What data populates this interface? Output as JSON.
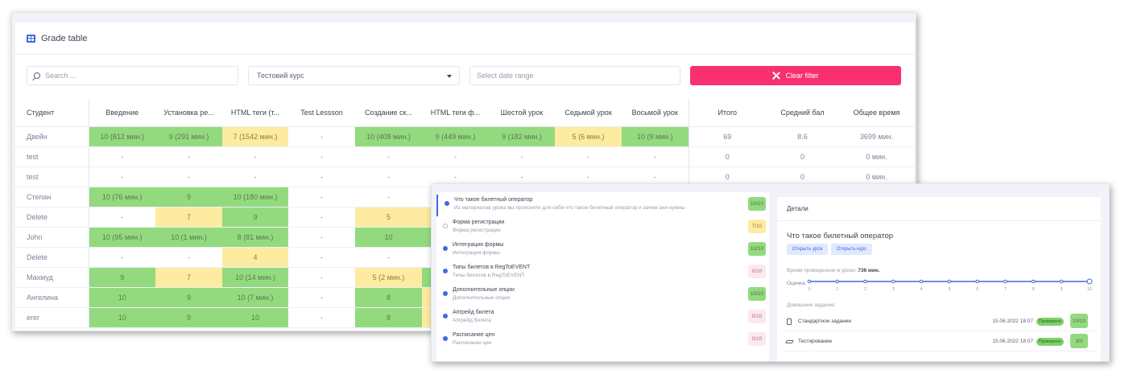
{
  "card": {
    "title": "Grade table"
  },
  "filters": {
    "search_placeholder": "Search ...",
    "course_value": "Тестовий курс",
    "date_placeholder": "Select date range",
    "clear_label": "Clear filter"
  },
  "table": {
    "headers": [
      "Студент",
      "Введение",
      "Установка ре...",
      "HTML теги (т...",
      "Test Lessson",
      "Создание ск...",
      "HTML теги ф...",
      "Шестой урок",
      "Седьмой урок",
      "Восьмой урок",
      "Итого",
      "Средний бал",
      "Общее время"
    ],
    "rows": [
      {
        "cells": [
          "Двейн",
          "10 (812 мин.)",
          "9 (291 мин.)",
          "7 (1542 мин.)",
          "-",
          "10 (408 мин.)",
          "9 (449 мин.)",
          "9 (182 мин.)",
          "5 (6 мин.)",
          "10 (9 мин.)",
          "69",
          "8.6",
          "3699 мин."
        ],
        "colors": [
          "",
          "g",
          "g",
          "y",
          "w",
          "g",
          "g",
          "g",
          "y",
          "g",
          "",
          "",
          ""
        ]
      },
      {
        "cells": [
          "test",
          "-",
          "-",
          "-",
          "-",
          "-",
          "-",
          "-",
          "-",
          "-",
          "0",
          "0",
          "0 мин."
        ],
        "colors": [
          "",
          "w",
          "w",
          "w",
          "w",
          "w",
          "w",
          "w",
          "w",
          "w",
          "",
          "",
          ""
        ]
      },
      {
        "cells": [
          "test",
          "-",
          "-",
          "-",
          "-",
          "-",
          "-",
          "-",
          "-",
          "-",
          "0",
          "0",
          "0 мин."
        ],
        "colors": [
          "",
          "w",
          "w",
          "w",
          "w",
          "w",
          "w",
          "w",
          "w",
          "w",
          "",
          "",
          ""
        ]
      },
      {
        "cells": [
          "Степан",
          "10 (76 мин.)",
          "9",
          "10 (180 мин.)",
          "-",
          "-",
          "",
          "",
          "",
          "",
          "",
          "",
          ""
        ],
        "colors": [
          "",
          "g",
          "g",
          "g",
          "w",
          "w",
          "",
          "",
          "",
          "",
          "",
          "",
          ""
        ]
      },
      {
        "cells": [
          "Delete",
          "-",
          "7",
          "9",
          "-",
          "5",
          "",
          "",
          "",
          "",
          "",
          "",
          ""
        ],
        "colors": [
          "",
          "w",
          "y",
          "g",
          "w",
          "y",
          "y",
          "",
          "",
          "",
          "",
          "",
          ""
        ]
      },
      {
        "cells": [
          "John",
          "10 (95 мин.)",
          "10 (1 мин.)",
          "8 (81 мин.)",
          "-",
          "10",
          "",
          "",
          "",
          "",
          "",
          "",
          ""
        ],
        "colors": [
          "",
          "g",
          "g",
          "g",
          "w",
          "g",
          "g",
          "",
          "",
          "",
          "",
          "",
          ""
        ]
      },
      {
        "cells": [
          "Delete",
          "-",
          "-",
          "4",
          "-",
          "-",
          "",
          "",
          "",
          "",
          "",
          "",
          ""
        ],
        "colors": [
          "",
          "w",
          "w",
          "y",
          "w",
          "w",
          "",
          "",
          "",
          "",
          "",
          "",
          ""
        ]
      },
      {
        "cells": [
          "Махмуд",
          "9",
          "7",
          "10 (14 мин.)",
          "-",
          "5 (2 мин.)",
          "",
          "",
          "",
          "",
          "",
          "",
          ""
        ],
        "colors": [
          "",
          "g",
          "y",
          "g",
          "w",
          "y",
          "g",
          "",
          "",
          "",
          "",
          "",
          ""
        ]
      },
      {
        "cells": [
          "Ангелина",
          "10",
          "9",
          "10 (7 мин.)",
          "-",
          "8",
          "",
          "",
          "",
          "",
          "",
          "",
          ""
        ],
        "colors": [
          "",
          "g",
          "g",
          "g",
          "w",
          "g",
          "y",
          "",
          "",
          "",
          "",
          "",
          ""
        ]
      },
      {
        "cells": [
          "erer",
          "10",
          "9",
          "10",
          "-",
          "8",
          "",
          "",
          "",
          "",
          "",
          "",
          ""
        ],
        "colors": [
          "",
          "g",
          "g",
          "g",
          "w",
          "g",
          "y",
          "",
          "",
          "",
          "",
          "",
          ""
        ]
      }
    ]
  },
  "lessons": [
    {
      "title": "Что такое билетный оператор",
      "subtitle": "Из материалов урока вы проясните для себя что такое билетный оператор и зачем они нужны",
      "score": "10/10",
      "color": "g",
      "active": true,
      "dot": "filled"
    },
    {
      "title": "Форма регистрации",
      "subtitle": "Форма регистрации",
      "score": "7/10",
      "color": "y",
      "active": false,
      "dot": "hollow"
    },
    {
      "title": "Интеграция формы",
      "subtitle": "Интеграция формы",
      "score": "10/10",
      "color": "g",
      "active": false,
      "dot": "filled"
    },
    {
      "title": "Типы билетов в RegToEVENT",
      "subtitle": "Типы билетов в RegToEVENT",
      "score": "0/10",
      "color": "p",
      "active": false,
      "dot": "filled"
    },
    {
      "title": "Дополнительные опции",
      "subtitle": "Дополнительные опции",
      "score": "10/10",
      "color": "g",
      "active": false,
      "dot": "filled"
    },
    {
      "title": "Апгрейд билета",
      "subtitle": "Апгрейд билета",
      "score": "0/10",
      "color": "p",
      "active": false,
      "dot": "filled"
    },
    {
      "title": "Расписание цен",
      "subtitle": "Расписание цен",
      "score": "0/10",
      "color": "p",
      "active": false,
      "dot": "filled"
    }
  ],
  "detail": {
    "header": "Детали",
    "lesson_title": "Что такое билетный оператор",
    "open_lesson": "Открыть урок",
    "open_course": "Открыть курс",
    "time_label": "Время проведенное в уроке:",
    "time_value": "736 мин.",
    "score_label": "Оценка:",
    "score_ticks": [
      "0",
      "1",
      "2",
      "3",
      "4",
      "5",
      "6",
      "7",
      "8",
      "9",
      "10"
    ],
    "score_value": 10,
    "homework_label": "Домашние задание:",
    "homework": [
      {
        "icon": "document-icon",
        "name": "Стандартное задание",
        "date": "15.06.2022 18:07",
        "status": "Проверено",
        "score": "10/10"
      },
      {
        "icon": "graduation-cap-icon",
        "name": "Тестирование",
        "date": "15.06.2022 18:07",
        "status": "Проверено",
        "score": "3/3"
      }
    ]
  },
  "colors": {
    "accent": "#3e6ae1",
    "danger": "#f8306f",
    "green": "#93da7f",
    "yellow": "#fdeba1",
    "pink": "#fde8ee"
  }
}
